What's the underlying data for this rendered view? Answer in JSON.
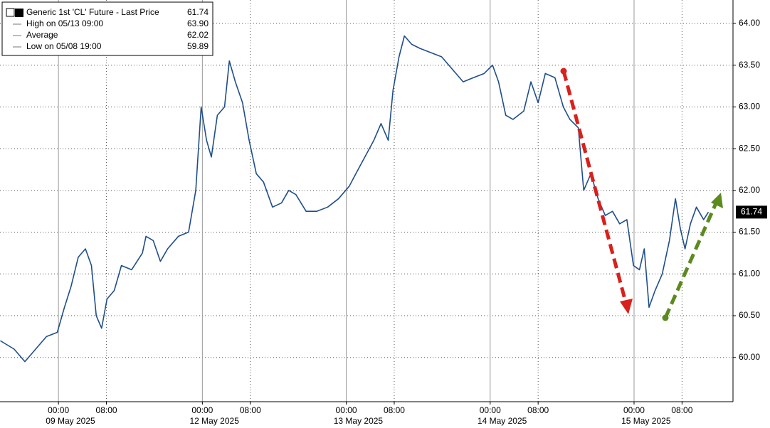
{
  "chart_data": {
    "type": "line",
    "legend": [
      {
        "label": "Generic 1st 'CL' Future - Last Price",
        "value": "61.74"
      },
      {
        "label": "High on 05/13 09:00",
        "value": "63.90"
      },
      {
        "label": "Average",
        "value": "62.02"
      },
      {
        "label": "Low on 05/08 19:00",
        "value": "59.89"
      }
    ],
    "x": [
      -9.7,
      -7.4,
      -5.6,
      -3.8,
      -2.0,
      -0.2,
      1.0,
      2.1,
      3.3,
      4.5,
      5.5,
      6.3,
      7.2,
      8.1,
      9.3,
      10.5,
      12.2,
      14.0,
      14.6,
      15.8,
      17.0,
      18.2,
      20.0,
      21.7,
      22.9,
      23.8,
      24.7,
      25.5,
      26.5,
      27.7,
      28.5,
      29.5,
      30.7,
      31.8,
      33.0,
      34.2,
      35.7,
      37.2,
      38.4,
      39.6,
      41.3,
      43.1,
      44.9,
      46.7,
      48.5,
      49.6,
      51.1,
      52.6,
      53.8,
      55.0,
      55.8,
      56.8,
      57.7,
      58.9,
      60.3,
      62.1,
      63.9,
      65.7,
      67.5,
      69.2,
      71.0,
      72.4,
      73.4,
      74.6,
      75.8,
      77.6,
      78.8,
      80.0,
      81.2,
      82.8,
      84.2,
      85.3,
      86.7,
      87.6,
      88.8,
      90.0,
      91.2,
      92.4,
      93.6,
      94.8,
      95.9,
      96.9,
      97.7,
      98.5,
      99.5,
      100.7,
      101.9,
      102.9,
      103.7,
      104.5,
      105.4,
      106.4,
      107.6,
      108.4
    ],
    "series": [
      {
        "name": "Generic 1st 'CL' Future - Last Price",
        "color": "#1f4e8c",
        "values": [
          60.2,
          60.1,
          59.95,
          60.1,
          60.25,
          60.3,
          60.6,
          60.85,
          61.2,
          61.3,
          61.1,
          60.5,
          60.35,
          60.7,
          60.8,
          61.1,
          61.05,
          61.25,
          61.45,
          61.4,
          61.15,
          61.3,
          61.45,
          61.5,
          62.0,
          63.0,
          62.6,
          62.4,
          62.9,
          63.0,
          63.55,
          63.3,
          63.05,
          62.6,
          62.2,
          62.1,
          61.8,
          61.85,
          62.0,
          61.95,
          61.75,
          61.75,
          61.8,
          61.9,
          62.05,
          62.2,
          62.4,
          62.6,
          62.8,
          62.6,
          63.2,
          63.6,
          63.85,
          63.75,
          63.7,
          63.65,
          63.6,
          63.45,
          63.3,
          63.35,
          63.4,
          63.5,
          63.3,
          62.9,
          62.85,
          62.95,
          63.3,
          63.05,
          63.4,
          63.35,
          63.0,
          62.85,
          62.75,
          62.0,
          62.2,
          61.9,
          61.7,
          61.75,
          61.6,
          61.65,
          61.1,
          61.05,
          61.3,
          60.6,
          60.8,
          61.0,
          61.4,
          61.9,
          61.55,
          61.3,
          61.6,
          61.8,
          61.65,
          61.74
        ]
      }
    ],
    "xlim": [
      -9.75,
      112.5
    ],
    "ylim": [
      59.47,
      64.28
    ],
    "yticks": [
      {
        "value": 60,
        "label": "60.00"
      },
      {
        "value": 60.5,
        "label": "60.50"
      },
      {
        "value": 61,
        "label": "61.00"
      },
      {
        "value": 61.5,
        "label": "61.50"
      },
      {
        "value": 62,
        "label": "62.00"
      },
      {
        "value": 62.5,
        "label": "62.50"
      },
      {
        "value": 63,
        "label": "63.00"
      },
      {
        "value": 63.5,
        "label": "63.50"
      },
      {
        "value": 64,
        "label": "64.00"
      }
    ],
    "xticks": [
      {
        "value": 0,
        "label": "00:00"
      },
      {
        "value": 8,
        "label": "08:00"
      },
      {
        "value": 24,
        "label": "00:00"
      },
      {
        "value": 32,
        "label": "08:00"
      },
      {
        "value": 48,
        "label": "00:00"
      },
      {
        "value": 56,
        "label": "08:00"
      },
      {
        "value": 72,
        "label": "00:00"
      },
      {
        "value": 80,
        "label": "08:00"
      },
      {
        "value": 96,
        "label": "00:00"
      },
      {
        "value": 104,
        "label": "08:00"
      }
    ],
    "day_labels": [
      {
        "value": 2,
        "label": "09 May 2025"
      },
      {
        "value": 26,
        "label": "12 May 2025"
      },
      {
        "value": 50,
        "label": "13 May 2025"
      },
      {
        "value": 74,
        "label": "14 May 2025"
      },
      {
        "value": 98,
        "label": "15 May 2025"
      }
    ],
    "grid": true
  }
}
